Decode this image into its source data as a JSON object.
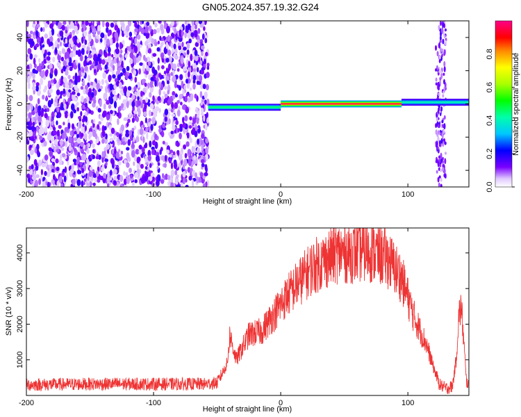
{
  "title": "GN05.2024.357.19.32.G24",
  "chart_data": [
    {
      "type": "heatmap",
      "xlabel": "Height of straight line (km)",
      "ylabel": "Frequency (Hz)",
      "xlim": [
        -200,
        148
      ],
      "ylim": [
        -50,
        50
      ],
      "x_ticks": [
        "-200",
        "-100",
        "0",
        "100"
      ],
      "x_tick_values": [
        -200,
        -100,
        0,
        100
      ],
      "y_ticks": [
        "-40",
        "-20",
        "0",
        "20",
        "40"
      ],
      "y_tick_values": [
        -40,
        -20,
        0,
        20,
        40
      ],
      "colorbar": {
        "label": "Normalized spectral amplitude",
        "range": [
          0,
          1
        ],
        "ticks": [
          "0.0",
          "0.2",
          "0.4",
          "0.6",
          "0.8"
        ],
        "tick_values": [
          0.0,
          0.2,
          0.4,
          0.6,
          0.8
        ]
      },
      "regions": [
        {
          "x_range": [
            -200,
            -57
          ],
          "description": "broadband noise, amplitude 0.05-0.3"
        },
        {
          "x_range": [
            -57,
            0
          ],
          "center_freq": -2,
          "amplitude": 0.5
        },
        {
          "x_range": [
            0,
            95
          ],
          "center_freq": 0,
          "amplitude": 1.0
        },
        {
          "x_range": [
            95,
            148
          ],
          "center_freq": 1,
          "amplitude": 0.4
        },
        {
          "x_range": [
            122,
            130
          ],
          "description": "vertical noise band"
        }
      ],
      "grid": false
    },
    {
      "type": "line",
      "xlabel": "Height of straight line (km)",
      "ylabel": "SNR (10 * v/v)",
      "xlim": [
        -200,
        148
      ],
      "ylim": [
        0,
        4700
      ],
      "x_ticks": [
        "-200",
        "-100",
        "0",
        "100"
      ],
      "x_tick_values": [
        -200,
        -100,
        0,
        100
      ],
      "y_ticks": [
        "1000",
        "2000",
        "3000",
        "4000"
      ],
      "y_tick_values": [
        1000,
        2000,
        3000,
        4000
      ],
      "color": "#ee3333",
      "series": [
        {
          "x": [
            -200,
            -150,
            -100,
            -60,
            -50,
            -42,
            -40,
            -35,
            -25,
            -15,
            -5,
            5,
            15,
            25,
            35,
            45,
            55,
            65,
            75,
            85,
            95,
            105,
            115,
            120,
            125,
            130,
            135,
            138,
            140,
            142,
            144,
            146,
            148
          ],
          "values": [
            300,
            320,
            320,
            320,
            350,
            900,
            1700,
            1000,
            1700,
            1800,
            2300,
            2800,
            3200,
            3600,
            3800,
            4000,
            4000,
            4050,
            4000,
            3800,
            3300,
            2200,
            1400,
            800,
            300,
            200,
            250,
            1000,
            2200,
            2500,
            1500,
            400,
            300
          ]
        }
      ],
      "grid": false
    }
  ]
}
